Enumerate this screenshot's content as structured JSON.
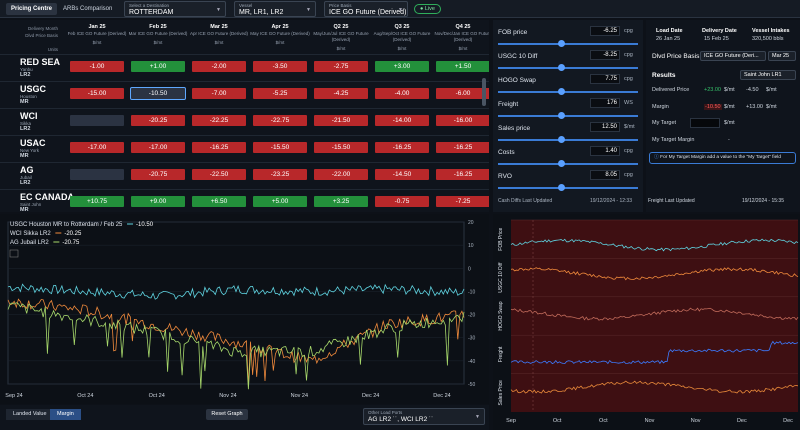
{
  "topbar": {
    "tabs": [
      "Pricing Centre",
      "ARBs Comparison"
    ],
    "destination": {
      "label": "Select a Destination",
      "value": "ROTTERDAM"
    },
    "vessel": {
      "label": "Vessel",
      "value": "MR, LR1, LR2"
    },
    "price_basis": {
      "label": "Price Basis",
      "value": "ICE GO Future (Derived)"
    },
    "live": "Live"
  },
  "grid": {
    "row_labels": [
      "Delivery Month",
      "Dlvd Price Basis",
      "",
      "Units"
    ],
    "columns": [
      {
        "month": "Jan 25",
        "basis": "Feb ICE GO Future (Derived)",
        "unit": "$/mt"
      },
      {
        "month": "Feb 25",
        "basis": "Mar ICE GO Future (Derived)",
        "unit": "$/mt"
      },
      {
        "month": "Mar 25",
        "basis": "Apr ICE GO Future (Derived)",
        "unit": "$/mt"
      },
      {
        "month": "Apr 25",
        "basis": "May ICE GO Future (Derived)",
        "unit": "$/mt"
      },
      {
        "month": "Q2 25",
        "basis": "May/Jun/Jul ICE GO Future (Derived)",
        "unit": "$/mt"
      },
      {
        "month": "Q3 25",
        "basis": "Aug/Sep/Oct ICE GO Future (Derived)",
        "unit": "$/mt"
      },
      {
        "month": "Q4 25",
        "basis": "Nov/Dec/Jan ICE GO Future (Derived)",
        "unit": "$/mt"
      }
    ],
    "rows": [
      {
        "name": "RED SEA",
        "sub": "Yanbu",
        "vessel": "LR2",
        "values": [
          "-1.00",
          "+1.00",
          "-2.00",
          "-3.50",
          "-2.75",
          "+3.00",
          "+1.50"
        ],
        "colors": [
          "red",
          "green",
          "red",
          "red",
          "red",
          "green",
          "green"
        ]
      },
      {
        "name": "USGC",
        "sub": "Houston",
        "vessel": "MR",
        "values": [
          "-15.00",
          "-10.50",
          "-7.00",
          "-5.25",
          "-4.25",
          "-4.00",
          "-6.00"
        ],
        "colors": [
          "red",
          "gray",
          "red",
          "red",
          "red",
          "red",
          "red"
        ]
      },
      {
        "name": "WCI",
        "sub": "Sikka",
        "vessel": "LR2",
        "values": [
          "",
          "-20.25",
          "-22.25",
          "-22.75",
          "-21.50",
          "-14.00",
          "-16.00"
        ],
        "colors": [
          "gray",
          "red",
          "red",
          "red",
          "red",
          "red",
          "red"
        ]
      },
      {
        "name": "USAC",
        "sub": "New York",
        "vessel": "MR",
        "values": [
          "-17.00",
          "-17.00",
          "-16.25",
          "-15.50",
          "-15.50",
          "-16.25",
          "-16.25"
        ],
        "colors": [
          "red",
          "red",
          "red",
          "red",
          "red",
          "red",
          "red"
        ]
      },
      {
        "name": "AG",
        "sub": "Jubail",
        "vessel": "LR2",
        "values": [
          "",
          "-20.75",
          "-22.50",
          "-23.25",
          "-22.00",
          "-14.50",
          "-16.25"
        ],
        "colors": [
          "gray",
          "red",
          "red",
          "red",
          "red",
          "red",
          "red"
        ]
      },
      {
        "name": "EC CANADA",
        "sub": "Saint John",
        "vessel": "MR",
        "values": [
          "+10.75",
          "+9.00",
          "+6.50",
          "+5.00",
          "+3.25",
          "-0.75",
          "-7.25"
        ],
        "colors": [
          "green",
          "green",
          "green",
          "green",
          "green",
          "red",
          "red"
        ]
      }
    ]
  },
  "sliders": [
    {
      "label": "FOB price",
      "value": "-6.25",
      "unit": "cpg",
      "pos": 0.45
    },
    {
      "label": "USGC 10 Diff",
      "value": "-8.25",
      "unit": "cpg",
      "pos": 0.45
    },
    {
      "label": "HOGO Swap",
      "value": "7.75",
      "unit": "cpg",
      "pos": 0.45
    },
    {
      "label": "Freight",
      "value": "176",
      "unit": "WS",
      "pos": 0.45
    },
    {
      "label": "Sales price",
      "value": "12.50",
      "unit": "$/mt",
      "pos": 0.45
    },
    {
      "label": "Costs",
      "value": "1.40",
      "unit": "cpg",
      "pos": 0.45
    },
    {
      "label": "RVO",
      "value": "8.05",
      "unit": "cpg",
      "pos": 0.45
    }
  ],
  "side_footer": {
    "left_label": "Cash Diffs Last Updated",
    "left_value": "19/12/2024 - 12:33",
    "right_label": "Freight Last Updated",
    "right_value": "19/12/2024 - 15:35"
  },
  "results": {
    "load_date_label": "Load Date",
    "load_date": "26 Jan 25",
    "delivery_date_label": "Delivery Date",
    "delivery_date": "15 Feb 25",
    "vessel_intakes_label": "Vessel Intakes",
    "vessel_intakes": "320,500 bbls",
    "dlvd_price_basis_label": "Dlvd Price Basis:",
    "dlvd_price_basis": "ICE GO Future (Deri...",
    "dlvd_month": "Mar 25",
    "results_label": "Results",
    "results_select": "Saint John LR1",
    "delivered_price_label": "Delivered Price",
    "delivered_price_a": "+23.00",
    "delivered_price_unit_a": "$/mt",
    "delivered_price_b": "-4.50",
    "delivered_price_unit_b": "$/mt",
    "margin_label": "Margin",
    "margin_a": "-10.50",
    "margin_unit_a": "$/mt",
    "margin_b": "+13.00",
    "margin_unit_b": "$/mt",
    "my_target_label": "My Target",
    "my_target_unit": "$/mt",
    "my_target_margin_label": "My Target Margin",
    "my_target_margin": "-",
    "note": "For My Target Margin add a value to the \"My Target\" field",
    "colors": {
      "positive": "#36c26a",
      "negative": "#ff5c5c"
    }
  },
  "chart_left": {
    "legend": [
      {
        "name": "USGC Houston MR to Rotterdam / Feb 25",
        "value": "-10.50",
        "color": "#5fd3e0"
      },
      {
        "name": "WCI Sikka LR2",
        "value": "-20.25",
        "color": "#f08a3c"
      },
      {
        "name": "AG Jubail LR2",
        "value": "-20.75",
        "color": "#a7d86b"
      }
    ],
    "y_ticks": [
      "20",
      "10",
      "0",
      "-10",
      "-20",
      "-30",
      "-40",
      "-50"
    ],
    "x_ticks": [
      "Sep 24",
      "Oct 24",
      "Oct 24",
      "Nov 24",
      "Nov 24",
      "Dec 24",
      "Dec 24"
    ]
  },
  "chart_right": {
    "panels": [
      "FOB Price",
      "USGC 10 Diff",
      "HOGO Swap",
      "Freight",
      "Sales Price"
    ],
    "x_ticks": [
      "Sep",
      "Oct",
      "Oct",
      "Nov",
      "Nov",
      "Dec",
      "Dec"
    ]
  },
  "bottombar": {
    "tabs": [
      "Landed Value",
      "Margin"
    ],
    "reset": "Reset Graph",
    "other_ports_label": "Other Load Ports",
    "other_ports_value": "AG LR2 ˙˙, WCI LR2 ˙˙"
  },
  "chart_data": [
    {
      "type": "line",
      "x": [
        "Sep 24",
        "Oct 24",
        "Oct 24",
        "Nov 24",
        "Nov 24",
        "Dec 24",
        "Dec 24"
      ],
      "ylim": [
        -50,
        20
      ],
      "series": [
        {
          "name": "USGC Houston MR to Rotterdam / Feb 25",
          "values": [
            -8,
            -10,
            -12,
            -9,
            -10,
            -9,
            -10.5
          ]
        },
        {
          "name": "WCI Sikka LR2",
          "values": [
            -14,
            -18,
            -25,
            -32,
            -40,
            -24,
            -20.25
          ]
        },
        {
          "name": "AG Jubail LR2",
          "values": [
            -16,
            -22,
            -28,
            -36,
            -36,
            -26,
            -20.75
          ]
        }
      ]
    },
    {
      "type": "line",
      "x": [
        "Sep",
        "Oct",
        "Oct",
        "Nov",
        "Nov",
        "Dec",
        "Dec"
      ],
      "series": [
        {
          "name": "FOB Price",
          "color": "#5fd3e0"
        },
        {
          "name": "USGC 10 Diff",
          "color": "#f08a3c"
        },
        {
          "name": "HOGO Swap",
          "color": "#c06a5a"
        },
        {
          "name": "Freight",
          "color": "#3d7bff"
        },
        {
          "name": "Sales Price",
          "color": "#e8893a"
        }
      ]
    }
  ]
}
